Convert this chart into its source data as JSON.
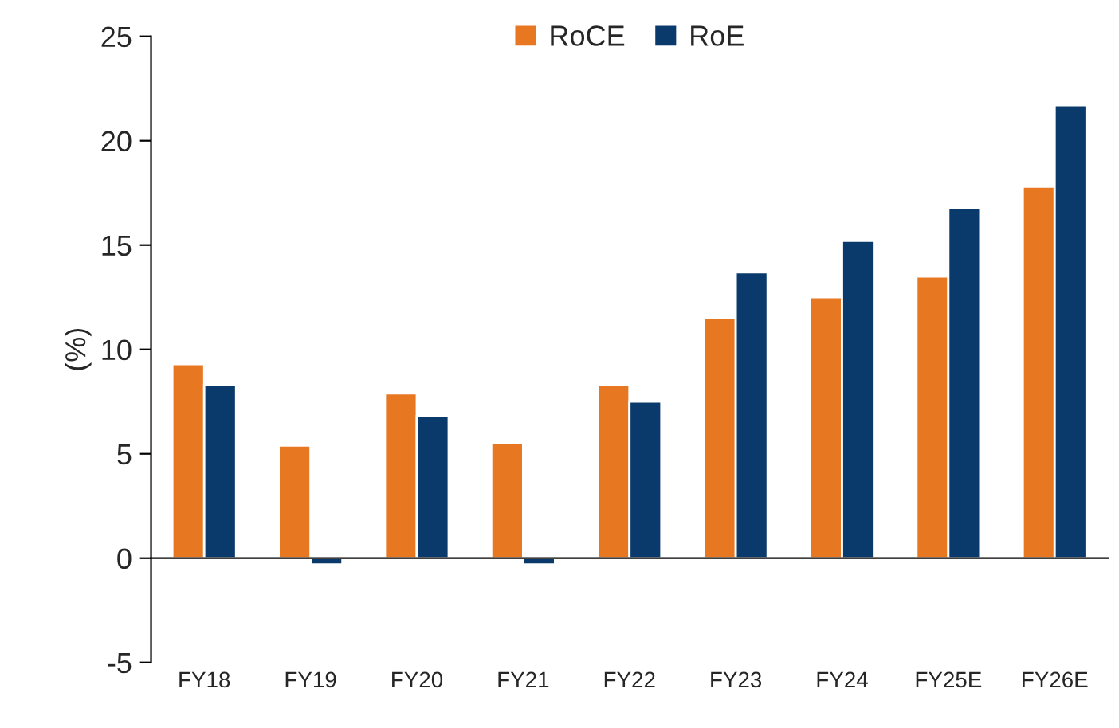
{
  "chart_data": {
    "type": "bar",
    "ylabel": "(%)",
    "categories": [
      "FY18",
      "FY19",
      "FY20",
      "FY21",
      "FY22",
      "FY23",
      "FY24",
      "FY25E",
      "FY26E"
    ],
    "series": [
      {
        "name": "RoCE",
        "color": "#e87722",
        "values": [
          9.3,
          5.4,
          7.9,
          5.5,
          8.3,
          11.5,
          12.5,
          13.5,
          17.8
        ]
      },
      {
        "name": "RoE",
        "color": "#0a3a6b",
        "values": [
          8.3,
          -0.3,
          6.8,
          -0.3,
          7.5,
          13.7,
          15.2,
          16.8,
          21.7
        ]
      }
    ],
    "ylim": [
      -5,
      25
    ],
    "yticks": [
      -5,
      0,
      5,
      10,
      15,
      20,
      25
    ],
    "legend": "top"
  }
}
